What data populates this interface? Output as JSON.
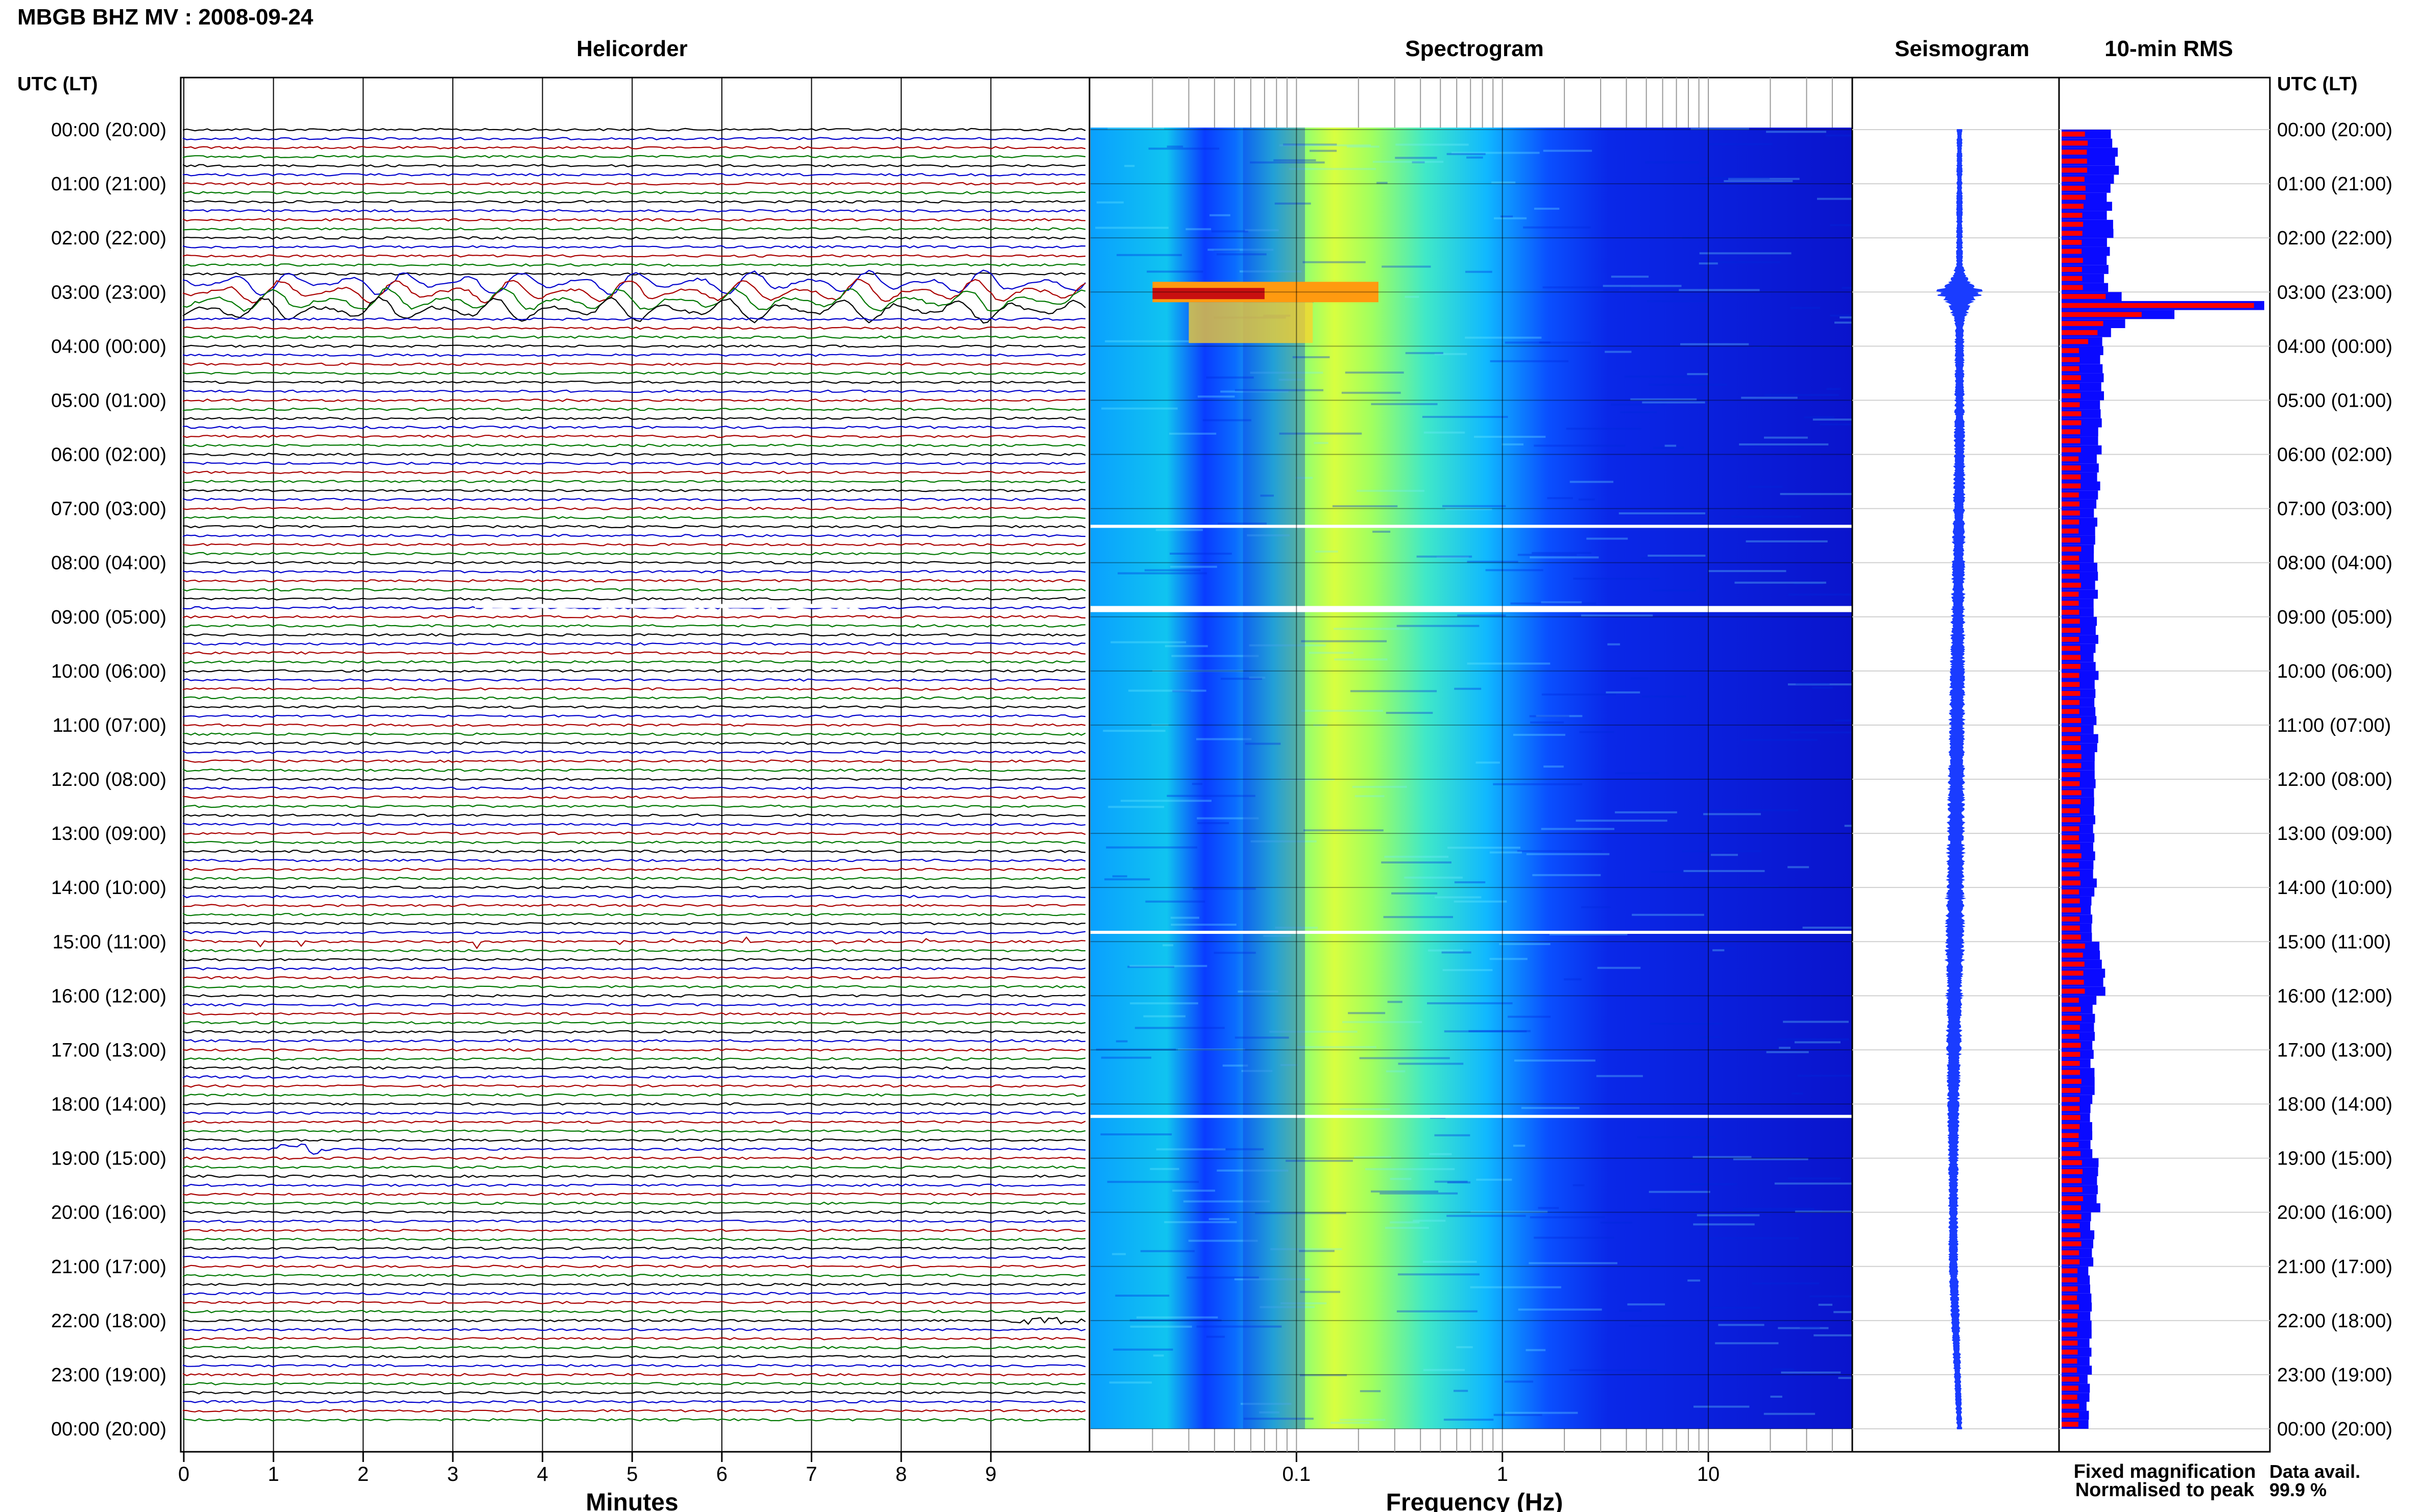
{
  "header": {
    "title": "MBGB BHZ MV : 2008-09-24"
  },
  "panels": {
    "helicorder": "Helicorder",
    "spectrogram": "Spectrogram",
    "seismogram": "Seismogram",
    "rms": "10-min RMS"
  },
  "time_axis": {
    "label_left": "UTC (LT)",
    "label_right": "UTC (LT)",
    "ticks": [
      "00:00 (20:00)",
      "01:00 (21:00)",
      "02:00 (22:00)",
      "03:00 (23:00)",
      "04:00 (00:00)",
      "05:00 (01:00)",
      "06:00 (02:00)",
      "07:00 (03:00)",
      "08:00 (04:00)",
      "09:00 (05:00)",
      "10:00 (06:00)",
      "11:00 (07:00)",
      "12:00 (08:00)",
      "13:00 (09:00)",
      "14:00 (10:00)",
      "15:00 (11:00)",
      "16:00 (12:00)",
      "17:00 (13:00)",
      "18:00 (14:00)",
      "19:00 (15:00)",
      "20:00 (16:00)",
      "21:00 (17:00)",
      "22:00 (18:00)",
      "23:00 (19:00)",
      "00:00 (20:00)"
    ]
  },
  "legend": {
    "fixed": "Fixed magnification",
    "normalised": "Normalised to peak",
    "avail_label": "Data avail.",
    "avail_value": "99.9 %",
    "fixed_color": "#0a0aff",
    "normalised_color": "#ff0000"
  },
  "colors": {
    "trace_colors": [
      "#000000",
      "#0000cc",
      "#aa0000",
      "#007700"
    ],
    "seismogram": "#1a3cff",
    "rms_fixed": "#0a0aff",
    "rms_norm": "#ff0000"
  },
  "chart_data": [
    {
      "type": "line",
      "name": "helicorder",
      "title": "Helicorder",
      "xlabel": "Minutes",
      "x_ticks": [
        "0",
        "1",
        "2",
        "3",
        "4",
        "5",
        "6",
        "7",
        "8",
        "9"
      ],
      "xlim": [
        0,
        10
      ],
      "ylim_hours": [
        0,
        24
      ],
      "rows_per_hour": 6,
      "events": [
        {
          "hour_start": 2.7,
          "hour_end": 3.5,
          "type": "large oscillations"
        },
        {
          "hour_start": 15.0,
          "hour_end": 15.0,
          "type": "spikes"
        },
        {
          "hour_start": 18.8,
          "hour_end": 18.9,
          "type": "burst"
        },
        {
          "hour_start": 21.9,
          "hour_end": 22.2,
          "type": "burst"
        }
      ],
      "gaps_hours": [
        7.1,
        8.8
      ]
    },
    {
      "type": "heatmap",
      "name": "spectrogram",
      "title": "Spectrogram",
      "xlabel": "Frequency (Hz)",
      "x_scale": "log",
      "x_ticks": [
        "0.1",
        "1",
        "10"
      ],
      "xlim": [
        0.01,
        50
      ],
      "ylim_hours": [
        0,
        24
      ],
      "colormap": "jet",
      "peak_band_hz": [
        0.2,
        0.35
      ],
      "event_high_energy": {
        "hour": 3.0,
        "freq_hz": [
          0.02,
          0.25
        ]
      },
      "gaps_hours": [
        7.3,
        8.8,
        14.8,
        18.2
      ]
    },
    {
      "type": "line",
      "name": "seismogram",
      "title": "Seismogram",
      "ylim_hours": [
        0,
        24
      ],
      "envelope": [
        {
          "hour": 0.0,
          "amp": 0.2
        },
        {
          "hour": 2.5,
          "amp": 0.25
        },
        {
          "hour": 2.85,
          "amp": 1.0
        },
        {
          "hour": 3.0,
          "amp": 2.2
        },
        {
          "hour": 3.2,
          "amp": 1.0
        },
        {
          "hour": 3.6,
          "amp": 0.35
        },
        {
          "hour": 15.0,
          "amp": 0.8
        },
        {
          "hour": 19.0,
          "amp": 0.4
        },
        {
          "hour": 22.0,
          "amp": 0.35
        },
        {
          "hour": 24.0,
          "amp": 0.2
        }
      ],
      "drift": [
        {
          "hour": 0.0,
          "x": 0.0
        },
        {
          "hour": 6.0,
          "x": 0.0
        },
        {
          "hour": 12.0,
          "x": -0.1
        },
        {
          "hour": 15.0,
          "x": -0.15
        },
        {
          "hour": 18.0,
          "x": -0.2
        },
        {
          "hour": 21.0,
          "x": -0.2
        },
        {
          "hour": 24.0,
          "x": 0.0
        }
      ]
    },
    {
      "type": "bar",
      "name": "rms",
      "title": "10-min RMS",
      "orientation": "horizontal",
      "ylim_hours": [
        0,
        24
      ],
      "bins_per_hour": 6,
      "series": [
        {
          "name": "Fixed magnification",
          "color": "#0a0aff",
          "hourly_values": [
            0.26,
            0.24,
            0.22,
            1.0,
            0.2,
            0.19,
            0.18,
            0.17,
            0.17,
            0.17,
            0.17,
            0.17,
            0.16,
            0.16,
            0.15,
            0.2,
            0.16,
            0.15,
            0.15,
            0.18,
            0.15,
            0.14,
            0.14,
            0.13
          ]
        },
        {
          "name": "Normalised to peak",
          "color": "#ff0000",
          "hourly_values": [
            0.12,
            0.11,
            0.1,
            0.7,
            0.09,
            0.09,
            0.09,
            0.09,
            0.09,
            0.09,
            0.09,
            0.09,
            0.09,
            0.09,
            0.09,
            0.11,
            0.09,
            0.09,
            0.09,
            0.1,
            0.09,
            0.08,
            0.08,
            0.08
          ]
        }
      ]
    }
  ]
}
